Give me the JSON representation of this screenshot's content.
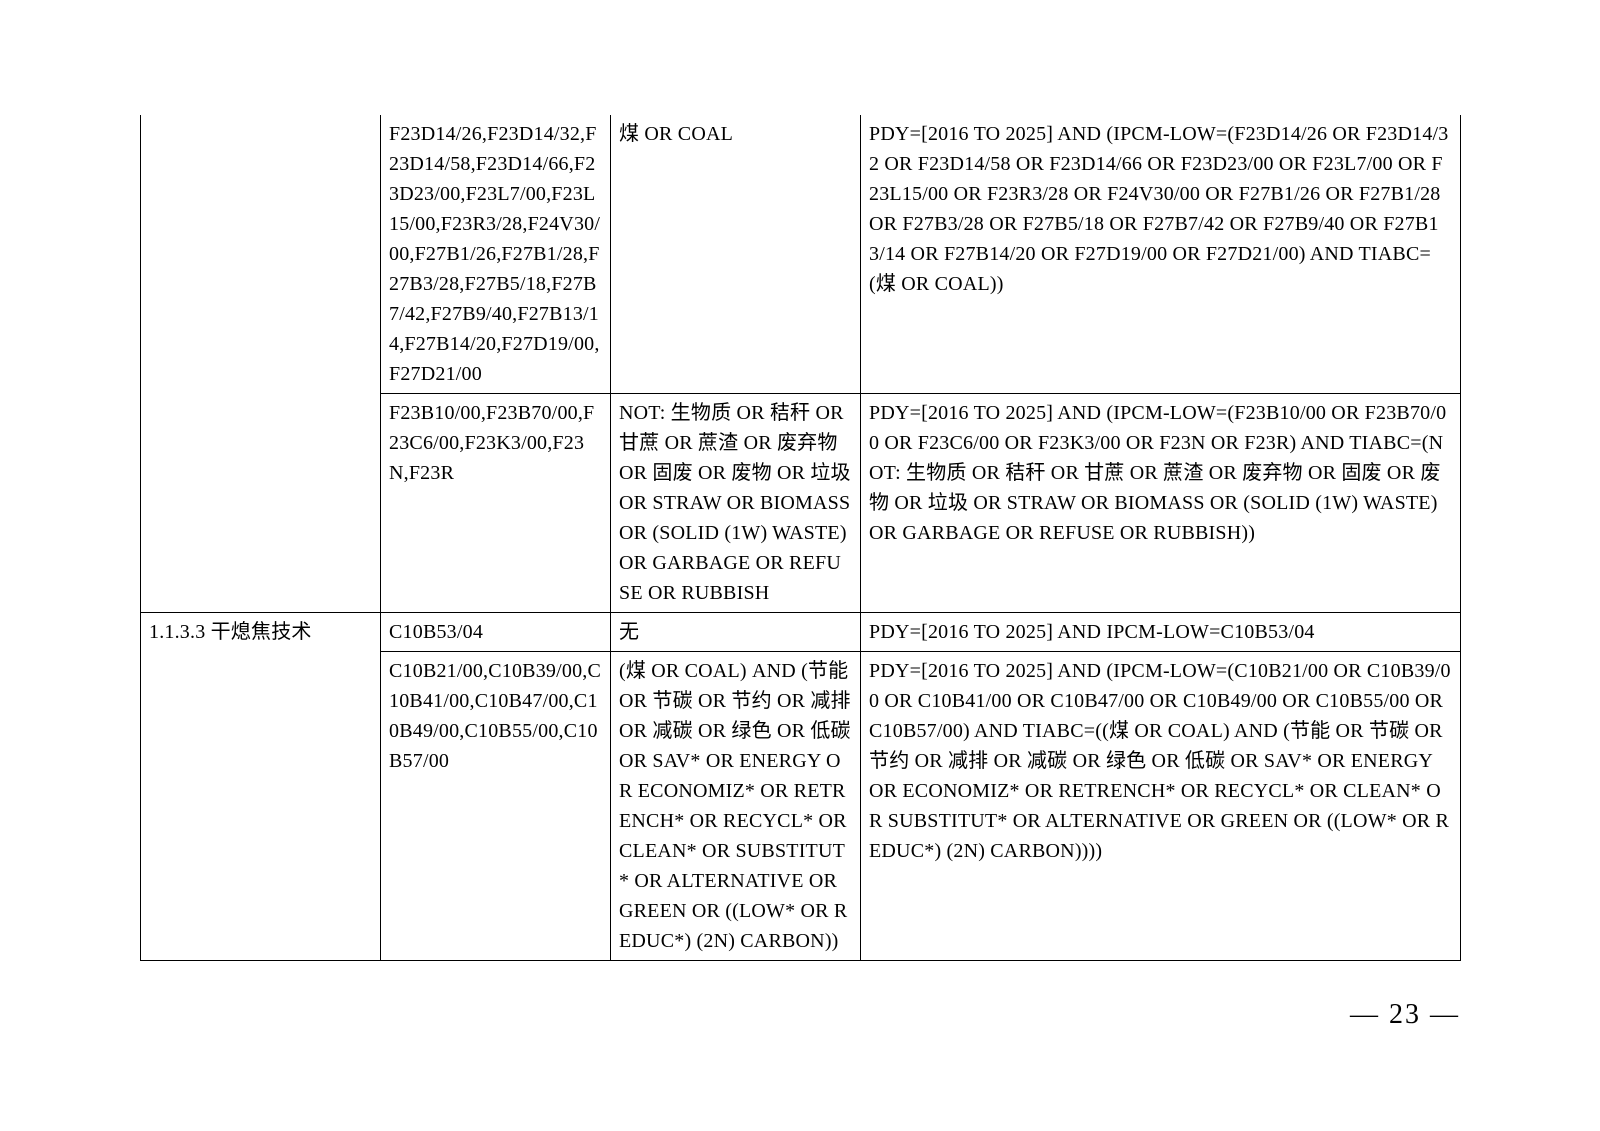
{
  "table": {
    "rows": [
      {
        "col1": "",
        "col2": "F23D14/26,F23D14/32,F23D14/58,F23D14/66,F23D23/00,F23L7/00,F23L15/00,F23R3/28,F24V30/00,F27B1/26,F27B1/28,F27B3/28,F27B5/18,F27B7/42,F27B9/40,F27B13/14,F27B14/20,F27D19/00,F27D21/00",
        "col3": "煤 OR COAL",
        "col4": "PDY=[2016 TO 2025] AND (IPCM-LOW=(F23D14/26 OR F23D14/32 OR F23D14/58 OR F23D14/66 OR F23D23/00 OR F23L7/00 OR F23L15/00 OR F23R3/28 OR F24V30/00 OR F27B1/26 OR F27B1/28 OR F27B3/28 OR F27B5/18 OR F27B7/42 OR F27B9/40 OR F27B13/14 OR F27B14/20 OR F27D19/00 OR F27D21/00)  AND TIABC=(煤 OR COAL))"
      },
      {
        "col1": "",
        "col2": "F23B10/00,F23B70/00,F23C6/00,F23K3/00,F23N,F23R",
        "col3": "NOT: 生物质 OR 秸秆 OR 甘蔗 OR 蔗渣 OR 废弃物 OR 固废 OR 废物 OR 垃圾 OR STRAW OR BIOMASS OR (SOLID (1W) WASTE) OR GARBAGE OR REFUSE OR RUBBISH",
        "col4": "PDY=[2016 TO 2025] AND (IPCM-LOW=(F23B10/00 OR F23B70/00 OR F23C6/00 OR F23K3/00 OR F23N OR F23R)  AND TIABC=(NOT: 生物质 OR 秸秆 OR 甘蔗 OR 蔗渣 OR 废弃物 OR 固废 OR 废物 OR 垃圾 OR STRAW OR BIOMASS OR (SOLID (1W) WASTE) OR GARBAGE OR REFUSE OR RUBBISH))"
      },
      {
        "col1": "1.1.3.3 干熄焦技术",
        "col2": "C10B53/04",
        "col3": "无",
        "col4": "PDY=[2016 TO 2025] AND IPCM-LOW=C10B53/04"
      },
      {
        "col1": "",
        "col2": "C10B21/00,C10B39/00,C10B41/00,C10B47/00,C10B49/00,C10B55/00,C10B57/00",
        "col3": "(煤 OR COAL) AND (节能 OR 节碳 OR 节约 OR 减排 OR 减碳 OR 绿色 OR 低碳 OR SAV* OR ENERGY OR ECONOMIZ* OR RETRENCH* OR RECYCL* OR CLEAN* OR SUBSTITUT* OR ALTERNATIVE OR GREEN OR ((LOW* OR REDUC*) (2N) CARBON))",
        "col4": "PDY=[2016 TO 2025] AND (IPCM-LOW=(C10B21/00 OR C10B39/00 OR C10B41/00 OR C10B47/00 OR C10B49/00 OR C10B55/00 OR C10B57/00)  AND TIABC=((煤 OR COAL) AND (节能 OR 节碳 OR 节约 OR 减排 OR 减碳 OR 绿色 OR 低碳 OR SAV* OR ENERGY OR ECONOMIZ* OR RETRENCH* OR RECYCL* OR CLEAN* OR SUBSTITUT* OR ALTERNATIVE OR GREEN OR ((LOW* OR REDUC*) (2N) CARBON))))"
      }
    ]
  },
  "page_number": "— 23 —"
}
